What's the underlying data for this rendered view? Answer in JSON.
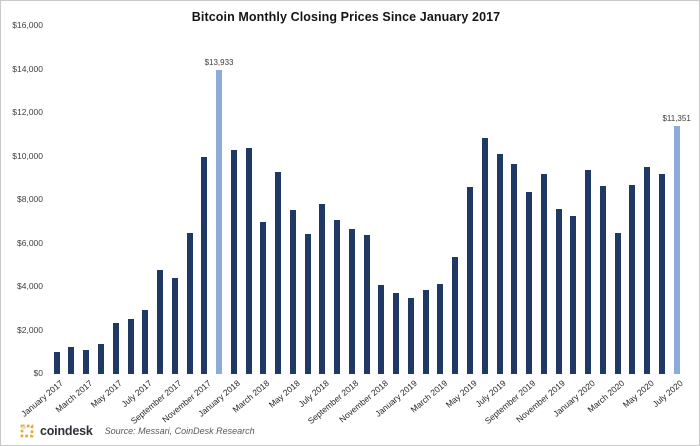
{
  "footer": {
    "brand": "coindesk",
    "source": "Source: Messari, CoinDesk Research"
  },
  "colors": {
    "bar": "#1f3864",
    "bar_highlight": "#8eaadb",
    "logo_gold": "#e7a93c"
  },
  "chart_data": {
    "type": "bar",
    "title": "Bitcoin Monthly Closing Prices Since January 2017",
    "xlabel": "",
    "ylabel": "",
    "ylim": [
      0,
      16000
    ],
    "grid": false,
    "legend": false,
    "y_ticks": [
      {
        "value": 0,
        "label": "$0"
      },
      {
        "value": 2000,
        "label": "$2,000"
      },
      {
        "value": 4000,
        "label": "$4,000"
      },
      {
        "value": 6000,
        "label": "$6,000"
      },
      {
        "value": 8000,
        "label": "$8,000"
      },
      {
        "value": 10000,
        "label": "$10,000"
      },
      {
        "value": 12000,
        "label": "$12,000"
      },
      {
        "value": 14000,
        "label": "$14,000"
      },
      {
        "value": 16000,
        "label": "$16,000"
      }
    ],
    "x_tick_label_every": 2,
    "categories": [
      "January 2017",
      "February 2017",
      "March 2017",
      "April 2017",
      "May 2017",
      "June 2017",
      "July 2017",
      "August 2017",
      "September 2017",
      "October 2017",
      "November 2017",
      "December 2017",
      "January 2018",
      "February 2018",
      "March 2018",
      "April 2018",
      "May 2018",
      "June 2018",
      "July 2018",
      "August 2018",
      "September 2018",
      "October 2018",
      "November 2018",
      "December 2018",
      "January 2019",
      "February 2019",
      "March 2019",
      "April 2019",
      "May 2019",
      "June 2019",
      "July 2019",
      "August 2019",
      "September 2019",
      "October 2019",
      "November 2019",
      "December 2019",
      "January 2020",
      "February 2020",
      "March 2020",
      "April 2020",
      "May 2020",
      "June 2020",
      "July 2020"
    ],
    "values": [
      970,
      1180,
      1080,
      1350,
      2300,
      2480,
      2875,
      4735,
      4360,
      6450,
      9950,
      13933,
      10265,
      10335,
      6940,
      9245,
      7495,
      6400,
      7780,
      7035,
      6625,
      6340,
      4040,
      3690,
      3440,
      3815,
      4100,
      5320,
      8560,
      10800,
      10085,
      9600,
      8310,
      9150,
      7550,
      7240,
      9350,
      8600,
      6440,
      8630,
      9450,
      9140,
      11351
    ],
    "highlighted_indices": [
      11,
      42
    ],
    "annotations": [
      {
        "index": 11,
        "text": "$13,933"
      },
      {
        "index": 42,
        "text": "$11,351"
      }
    ]
  }
}
